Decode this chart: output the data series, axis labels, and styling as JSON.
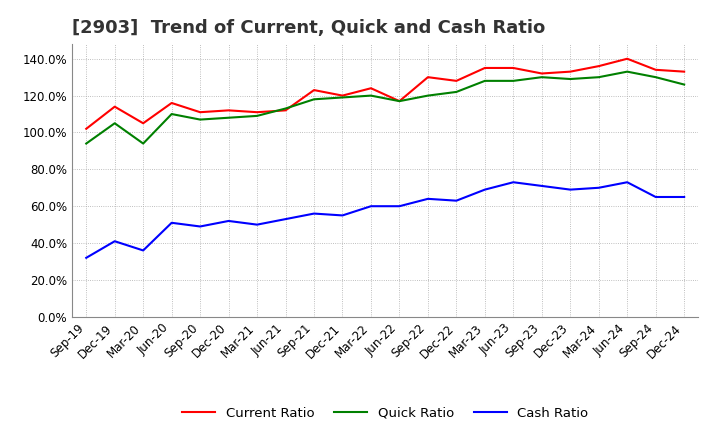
{
  "title": "[2903]  Trend of Current, Quick and Cash Ratio",
  "x_labels": [
    "Sep-19",
    "Dec-19",
    "Mar-20",
    "Jun-20",
    "Sep-20",
    "Dec-20",
    "Mar-21",
    "Jun-21",
    "Sep-21",
    "Dec-21",
    "Mar-22",
    "Jun-22",
    "Sep-22",
    "Dec-22",
    "Mar-23",
    "Jun-23",
    "Sep-23",
    "Dec-23",
    "Mar-24",
    "Jun-24",
    "Sep-24",
    "Dec-24"
  ],
  "current_ratio": [
    102,
    114,
    105,
    116,
    111,
    112,
    111,
    112,
    123,
    120,
    124,
    117,
    130,
    128,
    135,
    135,
    132,
    133,
    136,
    140,
    134,
    133
  ],
  "quick_ratio": [
    94,
    105,
    94,
    110,
    107,
    108,
    109,
    113,
    118,
    119,
    120,
    117,
    120,
    122,
    128,
    128,
    130,
    129,
    130,
    133,
    130,
    126
  ],
  "cash_ratio": [
    32,
    41,
    36,
    51,
    49,
    52,
    50,
    53,
    56,
    55,
    60,
    60,
    64,
    63,
    69,
    73,
    71,
    69,
    70,
    73,
    65,
    65
  ],
  "current_color": "#ff0000",
  "quick_color": "#008000",
  "cash_color": "#0000ff",
  "yticks": [
    0,
    20,
    40,
    60,
    80,
    100,
    120,
    140
  ],
  "background_color": "#ffffff",
  "grid_color": "#aaaaaa",
  "title_fontsize": 13,
  "axis_fontsize": 8.5,
  "legend_fontsize": 9.5
}
